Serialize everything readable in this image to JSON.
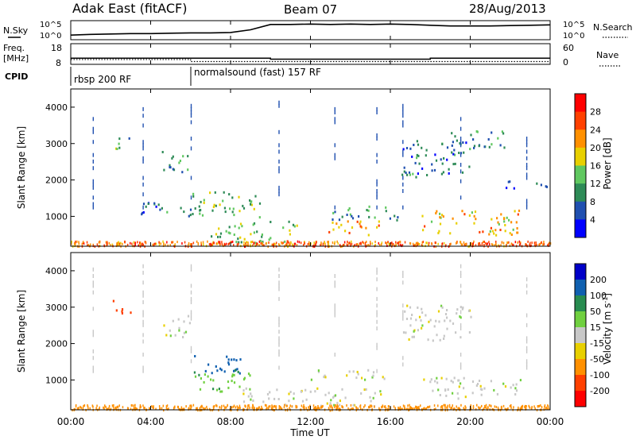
{
  "header": {
    "station": "Adak East (fitACF)",
    "beam": "Beam 07",
    "date": "28/Aug/2013"
  },
  "status_panels": {
    "nsky": {
      "label": "N.Sky",
      "scale_top": "10^5",
      "scale_bottom": "10^0",
      "right_label": "N.Search",
      "right_scale_top": "10^5",
      "right_scale_bottom": "10^0"
    },
    "freq": {
      "label_line1": "Freq.",
      "label_line2": "[MHz]",
      "ticks": [
        "18",
        "8"
      ],
      "right_label": "Nave",
      "right_ticks": [
        "60",
        "0"
      ]
    },
    "cpid": {
      "label": "CPID",
      "programs": [
        {
          "name": "rbsp 200 RF",
          "start_hour": 0
        },
        {
          "name": "normalsound (fast) 157 RF",
          "start_hour": 6
        }
      ]
    }
  },
  "power_panel": {
    "ylabel": "Slant Range [km]",
    "yticks": [
      "4000",
      "3000",
      "2000",
      "1000"
    ],
    "colorbar_label": "Power [dB]",
    "colorbar_ticks": [
      "28",
      "24",
      "20",
      "16",
      "12",
      "8",
      "4"
    ]
  },
  "velocity_panel": {
    "ylabel": "Slant Range [km]",
    "yticks": [
      "4000",
      "3000",
      "2000",
      "1000"
    ],
    "colorbar_label": "Velocity [m s",
    "colorbar_label_sup": "-1",
    "colorbar_label_end": "]",
    "colorbar_ticks": [
      "200",
      "100",
      "50",
      "15",
      "-15",
      "-50",
      "-100",
      "-200"
    ]
  },
  "xaxis": {
    "label": "Time UT",
    "ticks": [
      "00:00",
      "04:00",
      "08:00",
      "12:00",
      "16:00",
      "20:00",
      "00:00"
    ]
  },
  "colors": {
    "power_scale": [
      "#0000ff",
      "#2050b0",
      "#2e8b57",
      "#60c860",
      "#e8d000",
      "#ff9000",
      "#ff4000",
      "#ff0000"
    ],
    "velocity_scale": [
      "#0000c8",
      "#1060b0",
      "#288c50",
      "#70d040",
      "#c8c8c8",
      "#e8d000",
      "#ff9000",
      "#ff4000",
      "#ff0000"
    ]
  },
  "chart_data": [
    {
      "type": "line",
      "title": "N.Sky",
      "x_hours": [
        0,
        1,
        2,
        3,
        4,
        5,
        6,
        7,
        8,
        9,
        10,
        11,
        12,
        13,
        14,
        15,
        16,
        17,
        18,
        19,
        20,
        21,
        22,
        23,
        24
      ],
      "values_log10": [
        1.2,
        1.4,
        1.5,
        1.6,
        1.6,
        1.7,
        1.8,
        1.8,
        1.9,
        2.6,
        4.0,
        4.0,
        4.1,
        4.0,
        4.1,
        4.0,
        4.1,
        4.0,
        3.8,
        3.6,
        3.6,
        3.6,
        3.7,
        3.8,
        3.9
      ],
      "ylim_log10": [
        0,
        5
      ]
    },
    {
      "type": "line",
      "title": "Freq.",
      "segments_mhz": [
        {
          "start_hour": 0,
          "end_hour": 10,
          "value": 11
        },
        {
          "start_hour": 10,
          "end_hour": 18,
          "value": 10.5
        },
        {
          "start_hour": 18,
          "end_hour": 24,
          "value": 11
        }
      ],
      "nave": [
        {
          "start_hour": 0,
          "end_hour": 6,
          "value": 14
        },
        {
          "start_hour": 6,
          "end_hour": 24,
          "value": 8
        }
      ],
      "ylim": [
        8,
        18
      ]
    },
    {
      "type": "heatmap",
      "title": "Power",
      "xlabel": "Time UT",
      "ylabel": "Slant Range [km]",
      "xlim_hours": [
        0,
        24
      ],
      "ylim_km": [
        180,
        4500
      ],
      "zlim_db": [
        0,
        32
      ],
      "regions": [
        {
          "t0": 2.0,
          "t1": 3.0,
          "r0": 2850,
          "r1": 3200,
          "db": 12
        },
        {
          "t0": 4.5,
          "t1": 6.0,
          "r0": 2200,
          "r1": 2800,
          "db": 10
        },
        {
          "t0": 3.5,
          "t1": 6.5,
          "r0": 1000,
          "r1": 1400,
          "db": 8
        },
        {
          "t0": 6.0,
          "t1": 9.5,
          "r0": 1000,
          "r1": 1700,
          "db": 13
        },
        {
          "t0": 7.0,
          "t1": 11.5,
          "r0": 300,
          "r1": 900,
          "db": 14
        },
        {
          "t0": 10.0,
          "t1": 13.0,
          "r0": 200,
          "r1": 350,
          "db": 26
        },
        {
          "t0": 12.5,
          "t1": 15.5,
          "r0": 500,
          "r1": 900,
          "db": 22
        },
        {
          "t0": 13.0,
          "t1": 16.5,
          "r0": 900,
          "r1": 1300,
          "db": 10
        },
        {
          "t0": 16.5,
          "t1": 20.0,
          "r0": 2100,
          "r1": 3100,
          "db": 8
        },
        {
          "t0": 19.0,
          "t1": 22.0,
          "r0": 2900,
          "r1": 3400,
          "db": 9
        },
        {
          "t0": 17.5,
          "t1": 22.5,
          "r0": 500,
          "r1": 1200,
          "db": 20
        },
        {
          "t0": 21.5,
          "t1": 24.0,
          "r0": 1800,
          "r1": 2000,
          "db": 6
        }
      ]
    },
    {
      "type": "heatmap",
      "title": "Velocity",
      "xlabel": "Time UT",
      "ylabel": "Slant Range [km]",
      "xlim_hours": [
        0,
        24
      ],
      "ylim_km": [
        180,
        4500
      ],
      "zlim_ms": [
        -250,
        250
      ],
      "regions": [
        {
          "t0": 2.0,
          "t1": 3.0,
          "r0": 2850,
          "r1": 3200,
          "vel": -150
        },
        {
          "t0": 4.5,
          "t1": 6.0,
          "r0": 2200,
          "r1": 2800,
          "vel": 0
        },
        {
          "t0": 6.0,
          "t1": 8.5,
          "r0": 1200,
          "r1": 1700,
          "vel": 120
        },
        {
          "t0": 6.0,
          "t1": 9.0,
          "r0": 700,
          "r1": 1300,
          "vel": 40
        },
        {
          "t0": 8.5,
          "t1": 15.5,
          "r0": 300,
          "r1": 800,
          "vel": 0
        },
        {
          "t0": 12.0,
          "t1": 16.0,
          "r0": 1000,
          "r1": 1300,
          "vel": 0
        },
        {
          "t0": 16.5,
          "t1": 20.0,
          "r0": 2100,
          "r1": 3100,
          "vel": 0
        },
        {
          "t0": 17.5,
          "t1": 22.5,
          "r0": 500,
          "r1": 1100,
          "vel": 0
        },
        {
          "t0": 8.0,
          "t1": 24.0,
          "r0": 190,
          "r1": 300,
          "vel": -70
        }
      ]
    }
  ]
}
